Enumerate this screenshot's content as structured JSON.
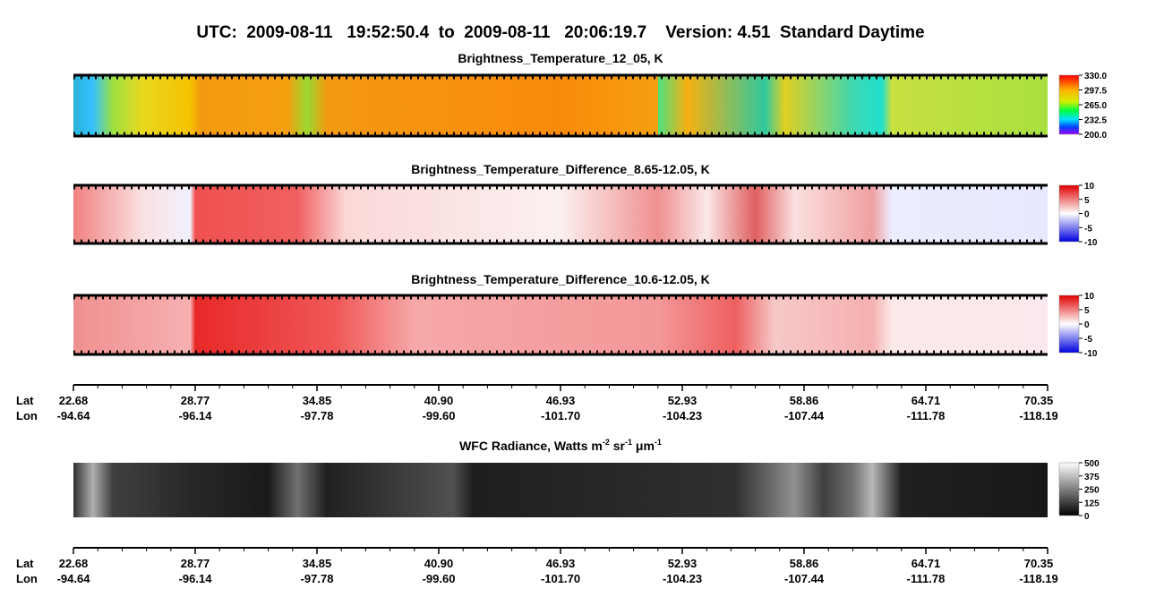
{
  "title": "UTC:  2009-08-11   19:52:50.4  to  2009-08-11   20:06:19.7    Version: 4.51  Standard Daytime",
  "panels": [
    {
      "title": "Brightness_Temperature_12_05, K",
      "colorbar": [
        "330.0",
        "297.5",
        "265.0",
        "232.5",
        "200.0"
      ]
    },
    {
      "title": "Brightness_Temperature_Difference_8.65-12.05, K",
      "colorbar": [
        "10",
        "5",
        "0",
        "-5",
        "-10"
      ]
    },
    {
      "title": "Brightness_Temperature_Difference_10.6-12.05, K",
      "colorbar": [
        "10",
        "5",
        "0",
        "-5",
        "-10"
      ]
    },
    {
      "title": "WFC Radiance, Watts m",
      "title_sup1": "-2",
      "title_mid1": " sr",
      "title_sup2": "-1",
      "title_mid2": " μm",
      "title_sup3": "-1",
      "colorbar": [
        "500",
        "375",
        "250",
        "125",
        "0"
      ]
    }
  ],
  "axes": [
    {
      "lat_label": "Lat",
      "lon_label": "Lon",
      "lat": [
        "22.68",
        "28.77",
        "34.85",
        "40.90",
        "46.93",
        "52.93",
        "58.86",
        "64.71",
        "70.35"
      ],
      "lon": [
        "-94.64",
        "-96.14",
        "-97.78",
        "-99.60",
        "-101.70",
        "-104.23",
        "-107.44",
        "-111.78",
        "-118.19"
      ]
    },
    {
      "lat_label": "Lat",
      "lon_label": "Lon",
      "lat": [
        "22.68",
        "28.77",
        "34.85",
        "40.90",
        "46.93",
        "52.93",
        "58.86",
        "64.71",
        "70.35"
      ],
      "lon": [
        "-94.64",
        "-96.14",
        "-97.78",
        "-99.60",
        "-101.70",
        "-104.23",
        "-107.44",
        "-111.78",
        "-118.19"
      ]
    }
  ]
}
